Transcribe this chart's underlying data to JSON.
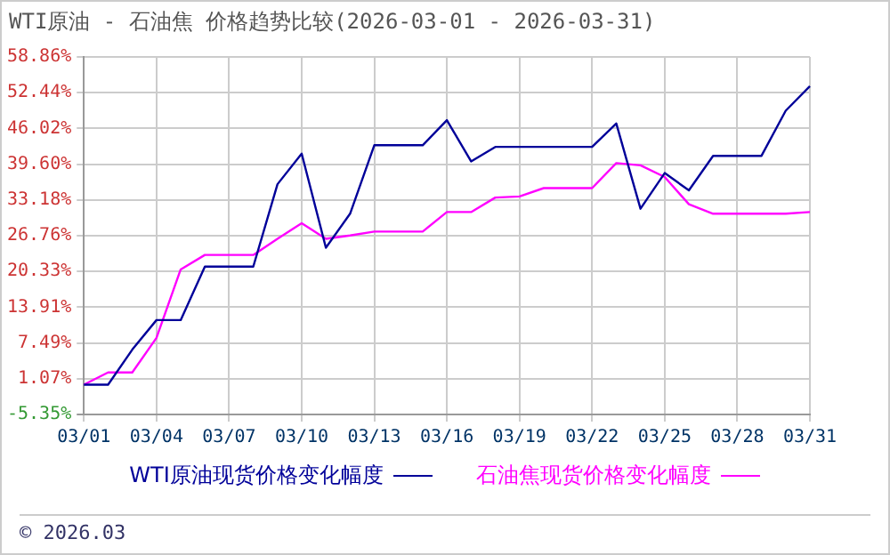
{
  "chart_data": {
    "type": "line",
    "title": "WTI原油 - 石油焦 价格趋势比较(2026-03-01 - 2026-03-31)",
    "categories": [
      "03/01",
      null,
      null,
      "03/04",
      null,
      null,
      "03/07",
      null,
      null,
      "03/10",
      null,
      null,
      "03/13",
      null,
      null,
      "03/16",
      null,
      null,
      "03/19",
      null,
      null,
      "03/22",
      null,
      null,
      "03/25",
      null,
      null,
      "03/28",
      null,
      null,
      "03/31"
    ],
    "series": [
      {
        "name": "WTI原油现货价格变化幅度",
        "color": "#000099",
        "values": [
          0,
          0,
          6.3,
          11.6,
          11.6,
          21.2,
          21.2,
          21.2,
          36.0,
          41.5,
          24.6,
          30.7,
          43.0,
          43.0,
          43.0,
          47.5,
          40.1,
          42.7,
          42.7,
          42.7,
          42.7,
          42.7,
          46.9,
          31.6,
          38.0,
          34.9,
          41.1,
          41.1,
          41.1,
          49.2,
          53.6
        ]
      },
      {
        "name": "石油焦现货价格变化幅度",
        "color": "#ff00ff",
        "values": [
          0,
          2.2,
          2.2,
          8.4,
          20.7,
          23.3,
          23.3,
          23.3,
          26.2,
          29.0,
          26.2,
          26.8,
          27.5,
          27.5,
          27.5,
          31.0,
          31.0,
          33.6,
          33.8,
          35.3,
          35.3,
          35.3,
          39.8,
          39.4,
          37.3,
          32.4,
          30.7,
          30.7,
          30.7,
          30.7,
          31.0
        ]
      }
    ],
    "ylim": [
      -5.35,
      58.86
    ],
    "yticks": [
      {
        "value": 58.86,
        "label": "58.86%"
      },
      {
        "value": 52.44,
        "label": "52.44%"
      },
      {
        "value": 46.02,
        "label": "46.02%"
      },
      {
        "value": 39.6,
        "label": "39.60%"
      },
      {
        "value": 33.18,
        "label": "33.18%"
      },
      {
        "value": 26.76,
        "label": "26.76%"
      },
      {
        "value": 20.33,
        "label": "20.33%"
      },
      {
        "value": 13.91,
        "label": "13.91%"
      },
      {
        "value": 7.49,
        "label": "7.49%"
      },
      {
        "value": 1.07,
        "label": "1.07%"
      },
      {
        "value": -5.35,
        "label": "-5.35%"
      }
    ],
    "grid": true,
    "legend": "bottom",
    "marker": "none",
    "line_style": "solid",
    "annotations": [
      "© 2026.03"
    ]
  }
}
